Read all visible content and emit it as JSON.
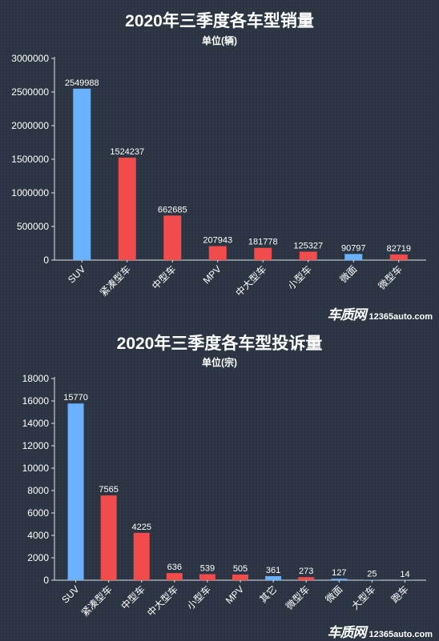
{
  "chart_data": [
    {
      "type": "bar",
      "title": "2020年三季度各车型销量",
      "subtitle": "单位(辆)",
      "categories": [
        "SUV",
        "紧凑型车",
        "中型车",
        "MPV",
        "中大型车",
        "小型车",
        "微面",
        "微型车"
      ],
      "values": [
        2549988,
        1524237,
        662685,
        207943,
        181778,
        125327,
        90797,
        82719
      ],
      "data_labels": [
        "2549988",
        "1524237",
        "662685",
        "207943",
        "181778",
        "125327",
        "90797",
        "82719"
      ],
      "bar_colors": [
        "#6ab2ff",
        "#f24b4b",
        "#f24b4b",
        "#f24b4b",
        "#f24b4b",
        "#f24b4b",
        "#6ab2ff",
        "#f24b4b"
      ],
      "ylim": [
        0,
        3000000
      ],
      "yticks": [
        "0",
        "500000",
        "1000000",
        "1500000",
        "2000000",
        "2500000",
        "3000000"
      ],
      "grid": false,
      "watermark": {
        "brand": "车质网",
        "url": "12365auto.com"
      }
    },
    {
      "type": "bar",
      "title": "2020年三季度各车型投诉量",
      "subtitle": "单位(宗)",
      "categories": [
        "SUV",
        "紧凑型车",
        "中型车",
        "中大型车",
        "小型车",
        "MPV",
        "其它",
        "微型车",
        "微面",
        "大型车",
        "跑车"
      ],
      "values": [
        15770,
        7565,
        4225,
        636,
        539,
        505,
        361,
        273,
        127,
        25,
        14
      ],
      "data_labels": [
        "15770",
        "7565",
        "4225",
        "636",
        "539",
        "505",
        "361",
        "273",
        "127",
        "25",
        "14"
      ],
      "bar_colors": [
        "#6ab2ff",
        "#f24b4b",
        "#f24b4b",
        "#f24b4b",
        "#f24b4b",
        "#f24b4b",
        "#6ab2ff",
        "#f24b4b",
        "#6ab2ff",
        "#6ab2ff",
        "#6ab2ff"
      ],
      "ylim": [
        0,
        18000
      ],
      "yticks": [
        "0",
        "2000",
        "4000",
        "6000",
        "8000",
        "10000",
        "12000",
        "14000",
        "16000",
        "18000"
      ],
      "grid": false,
      "watermark": {
        "brand": "车质网",
        "url": "12365auto.com"
      }
    }
  ]
}
